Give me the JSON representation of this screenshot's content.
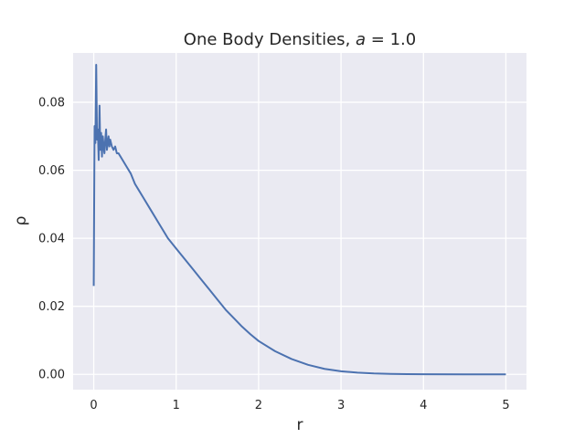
{
  "chart_data": {
    "type": "line",
    "title_main": "One Body Densities, ",
    "title_var": "a",
    "title_eq": " = 1.0",
    "xlabel": "r",
    "ylabel": "ρ",
    "xlim": [
      -0.25,
      5.25
    ],
    "ylim": [
      -0.0045,
      0.0945
    ],
    "xticks": [
      0,
      1,
      2,
      3,
      4,
      5
    ],
    "xtick_labels": [
      "0",
      "1",
      "2",
      "3",
      "4",
      "5"
    ],
    "yticks": [
      0.0,
      0.02,
      0.04,
      0.06,
      0.08
    ],
    "ytick_labels": [
      "0.00",
      "0.02",
      "0.04",
      "0.06",
      "0.08"
    ],
    "grid": true,
    "style": "seaborn-darkgrid",
    "colors": {
      "line": "#4c72b0",
      "background": "#eaeaf2",
      "grid": "#ffffff"
    },
    "series": [
      {
        "x": [
          0.0,
          0.01,
          0.02,
          0.03,
          0.04,
          0.05,
          0.06,
          0.07,
          0.08,
          0.09,
          0.1,
          0.11,
          0.12,
          0.13,
          0.14,
          0.15,
          0.16,
          0.17,
          0.18,
          0.19,
          0.2,
          0.22,
          0.24,
          0.26,
          0.28,
          0.3,
          0.35,
          0.4,
          0.45,
          0.5,
          0.55,
          0.6,
          0.7,
          0.8,
          0.9,
          1.0,
          1.1,
          1.2,
          1.3,
          1.4,
          1.5,
          1.6,
          1.7,
          1.8,
          1.9,
          2.0,
          2.2,
          2.4,
          2.6,
          2.8,
          3.0,
          3.2,
          3.4,
          3.6,
          3.8,
          4.0,
          4.5,
          5.0
        ],
        "y": [
          0.026,
          0.073,
          0.068,
          0.091,
          0.069,
          0.072,
          0.063,
          0.079,
          0.066,
          0.071,
          0.064,
          0.07,
          0.067,
          0.065,
          0.069,
          0.072,
          0.066,
          0.068,
          0.07,
          0.067,
          0.069,
          0.067,
          0.066,
          0.067,
          0.065,
          0.065,
          0.063,
          0.061,
          0.059,
          0.056,
          0.054,
          0.052,
          0.048,
          0.044,
          0.04,
          0.037,
          0.034,
          0.031,
          0.028,
          0.025,
          0.022,
          0.019,
          0.0165,
          0.014,
          0.0118,
          0.0098,
          0.0068,
          0.0045,
          0.0028,
          0.0016,
          0.0009,
          0.0005,
          0.00025,
          0.00012,
          5e-05,
          2e-05,
          0.0,
          0.0
        ]
      }
    ]
  }
}
